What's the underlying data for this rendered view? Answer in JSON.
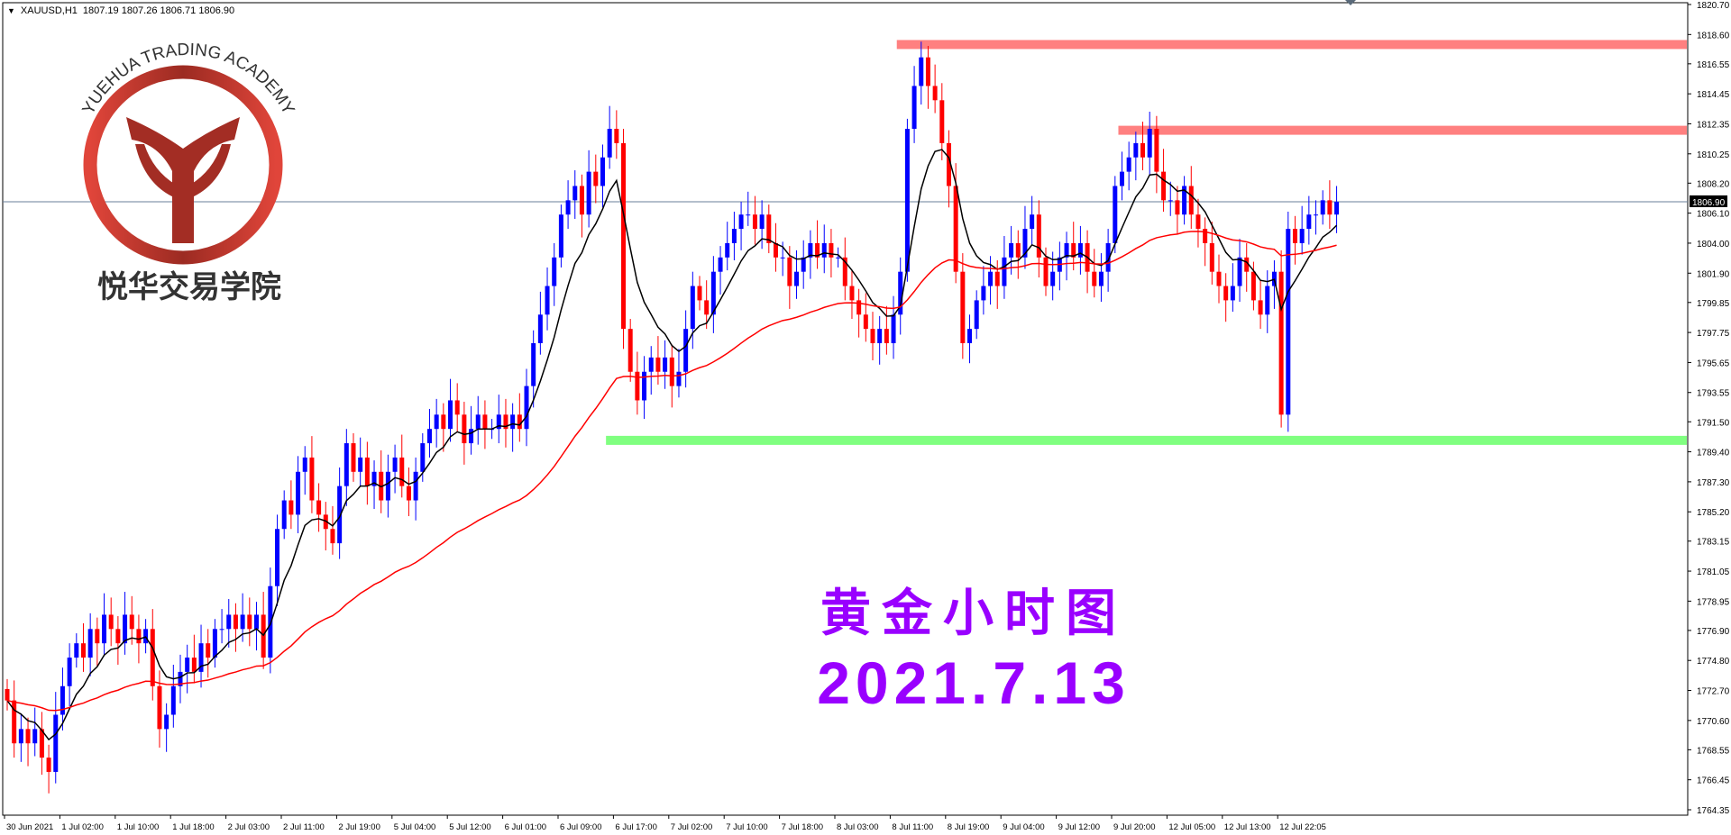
{
  "header": {
    "symbol": "XAUUSD,H1",
    "ohlc": "1807.19 1807.26 1806.71 1806.90"
  },
  "logo": {
    "text_en": "YUEHUA TRADING ACADEMY",
    "text_cn": "悦华交易学院",
    "color": "#b8332a"
  },
  "annotation": {
    "title": "黄金小时图",
    "date": "2021.7.13",
    "color": "#9900ff"
  },
  "chart_data": {
    "type": "candlestick",
    "symbol": "XAUUSD",
    "timeframe": "H1",
    "current_price": 1806.9,
    "current_price_label": "1806.90",
    "ylim": [
      1764.35,
      1820.7
    ],
    "price_ticks": [
      "1820.70",
      "1818.60",
      "1816.55",
      "1814.45",
      "1812.35",
      "1810.25",
      "1808.20",
      "1806.10",
      "1804.00",
      "1801.90",
      "1799.85",
      "1797.75",
      "1795.65",
      "1793.55",
      "1791.50",
      "1789.40",
      "1787.30",
      "1785.20",
      "1783.15",
      "1781.05",
      "1778.95",
      "1776.90",
      "1774.80",
      "1772.70",
      "1770.60",
      "1768.55",
      "1766.45",
      "1764.35"
    ],
    "time_labels": [
      "30 Jun 2021",
      "1 Jul 02:00",
      "1 Jul 10:00",
      "1 Jul 18:00",
      "2 Jul 03:00",
      "2 Jul 11:00",
      "2 Jul 19:00",
      "5 Jul 04:00",
      "5 Jul 12:00",
      "6 Jul 01:00",
      "6 Jul 09:00",
      "6 Jul 17:00",
      "7 Jul 02:00",
      "7 Jul 10:00",
      "7 Jul 18:00",
      "8 Jul 03:00",
      "8 Jul 11:00",
      "8 Jul 19:00",
      "9 Jul 04:00",
      "9 Jul 12:00",
      "9 Jul 20:00",
      "12 Jul 05:00",
      "12 Jul 13:00",
      "12 Jul 22:05"
    ],
    "closes": [
      1772,
      1769,
      1770,
      1769,
      1770,
      1768,
      1767,
      1771,
      1773,
      1775,
      1776,
      1775,
      1777,
      1776,
      1778,
      1777,
      1776,
      1778,
      1777,
      1776,
      1777,
      1773,
      1770,
      1771,
      1773,
      1774,
      1775,
      1774,
      1776,
      1775,
      1777,
      1777,
      1778,
      1777,
      1778,
      1777,
      1778,
      1775,
      1780,
      1784,
      1786,
      1785,
      1788,
      1789,
      1786,
      1785,
      1784,
      1783,
      1787,
      1790,
      1788,
      1789,
      1787,
      1788,
      1786,
      1788,
      1789,
      1787,
      1786,
      1788,
      1790,
      1791,
      1792,
      1791,
      1793,
      1792,
      1790,
      1791,
      1792,
      1791,
      1791,
      1792,
      1791,
      1792,
      1791,
      1794,
      1797,
      1799,
      1801,
      1803,
      1806,
      1807,
      1808,
      1806,
      1809,
      1808,
      1810,
      1812,
      1811,
      1798,
      1795,
      1793,
      1795,
      1796,
      1795,
      1796,
      1794,
      1795,
      1798,
      1801,
      1800,
      1799,
      1802,
      1803,
      1804,
      1805,
      1806,
      1806,
      1805,
      1806,
      1804,
      1803,
      1803,
      1801,
      1802,
      1803,
      1804,
      1803,
      1804,
      1803,
      1803,
      1801,
      1800,
      1799,
      1798,
      1797,
      1798,
      1797,
      1799,
      1802,
      1812,
      1815,
      1817,
      1815,
      1814,
      1811,
      1808,
      1802,
      1797,
      1798,
      1800,
      1801,
      1802,
      1801,
      1803,
      1804,
      1803,
      1805,
      1806,
      1803,
      1801,
      1802,
      1803,
      1804,
      1803,
      1804,
      1802,
      1801,
      1802,
      1804,
      1808,
      1809,
      1810,
      1811,
      1810,
      1812,
      1809,
      1807,
      1807,
      1806,
      1808,
      1806,
      1805,
      1804,
      1802,
      1801,
      1800,
      1801,
      1803,
      1802,
      1800,
      1799,
      1801,
      1802,
      1792,
      1805,
      1804,
      1805,
      1806,
      1806,
      1807,
      1806,
      1806.9
    ],
    "bull_color": "#0000ff",
    "bear_color": "#ff0000",
    "moving_averages": [
      {
        "period": 8,
        "color": "#000000"
      },
      {
        "period": 50,
        "color": "#ff0000"
      }
    ],
    "levels": [
      {
        "kind": "resistance",
        "price": 1817.9,
        "from_bar": 129,
        "color": "#ff8080"
      },
      {
        "kind": "resistance",
        "price": 1811.9,
        "from_bar": 161,
        "color": "#ff8080"
      },
      {
        "kind": "support",
        "price": 1790.2,
        "from_bar": 87,
        "color": "#80ff80"
      }
    ],
    "current_price_line_color": "#6a7f99",
    "grid": false
  }
}
